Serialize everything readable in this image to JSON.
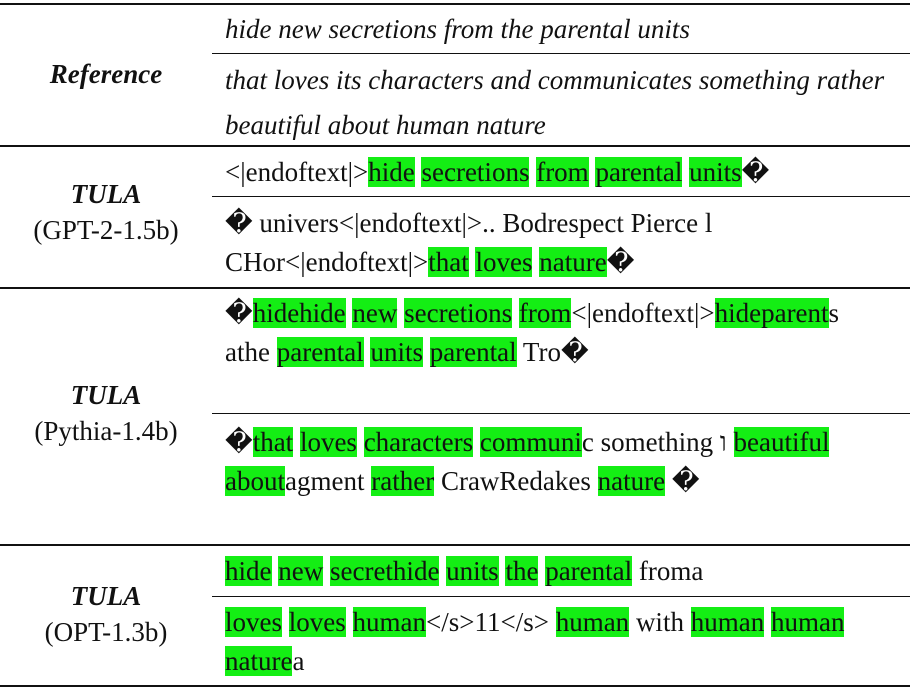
{
  "reference": {
    "label": "Reference",
    "texts": [
      "hide new secretions from the parental units",
      "that loves its characters and communicates something rather beautiful about human nature"
    ]
  },
  "groups": [
    {
      "label": "TULA",
      "sub": "(GPT-2-1.5b)",
      "outputs": [
        [
          {
            "t": "<|endoftext|>",
            "h": false
          },
          {
            "t": "hide",
            "h": true
          },
          {
            "t": " ",
            "h": false
          },
          {
            "t": "secretions",
            "h": true
          },
          {
            "t": " ",
            "h": false
          },
          {
            "t": "from",
            "h": true
          },
          {
            "t": " ",
            "h": false
          },
          {
            "t": "parental",
            "h": true
          },
          {
            "t": " ",
            "h": false
          },
          {
            "t": "units",
            "h": true
          },
          {
            "t": "�",
            "h": false
          }
        ],
        [
          {
            "t": "� univers<|endoftext|>.. Bodrespect Pierce l CHor<|endoftext|>",
            "h": false
          },
          {
            "t": "that",
            "h": true
          },
          {
            "t": " ",
            "h": false
          },
          {
            "t": "loves",
            "h": true
          },
          {
            "t": " ",
            "h": false
          },
          {
            "t": "nature",
            "h": true
          },
          {
            "t": "�",
            "h": false
          }
        ]
      ]
    },
    {
      "label": "TULA",
      "sub": "(Pythia-1.4b)",
      "outputs": [
        [
          {
            "t": "�",
            "h": false
          },
          {
            "t": "hidehide",
            "h": true
          },
          {
            "t": " ",
            "h": false
          },
          {
            "t": "new",
            "h": true
          },
          {
            "t": " ",
            "h": false
          },
          {
            "t": "secretions",
            "h": true
          },
          {
            "t": " ",
            "h": false
          },
          {
            "t": "from",
            "h": true
          },
          {
            "t": "<|endoftext|>",
            "h": false
          },
          {
            "t": "hideparent",
            "h": true
          },
          {
            "t": "s athe ",
            "h": false
          },
          {
            "t": "parental",
            "h": true
          },
          {
            "t": " ",
            "h": false
          },
          {
            "t": "units",
            "h": true
          },
          {
            "t": " ",
            "h": false
          },
          {
            "t": "parental",
            "h": true
          },
          {
            "t": " Tro�",
            "h": false
          }
        ],
        [
          {
            "t": "�",
            "h": false
          },
          {
            "t": "that",
            "h": true
          },
          {
            "t": " ",
            "h": false
          },
          {
            "t": "loves",
            "h": true
          },
          {
            "t": " ",
            "h": false
          },
          {
            "t": "characters",
            "h": true
          },
          {
            "t": " ",
            "h": false
          },
          {
            "t": "communi",
            "h": true
          },
          {
            "t": "c something ו ",
            "h": false
          },
          {
            "t": "beautiful",
            "h": true
          },
          {
            "t": " ",
            "h": false
          },
          {
            "t": "about",
            "h": true
          },
          {
            "t": "agment ",
            "h": false
          },
          {
            "t": "rather",
            "h": true
          },
          {
            "t": " CrawRedakes ",
            "h": false
          },
          {
            "t": "nature",
            "h": true
          },
          {
            "t": " �",
            "h": false
          }
        ]
      ]
    },
    {
      "label": "TULA",
      "sub": "(OPT-1.3b)",
      "outputs": [
        [
          {
            "t": "hide",
            "h": true
          },
          {
            "t": " ",
            "h": false
          },
          {
            "t": "new",
            "h": true
          },
          {
            "t": " ",
            "h": false
          },
          {
            "t": "secrethide",
            "h": true
          },
          {
            "t": " ",
            "h": false
          },
          {
            "t": "units",
            "h": true
          },
          {
            "t": " ",
            "h": false
          },
          {
            "t": "the",
            "h": true
          },
          {
            "t": " ",
            "h": false
          },
          {
            "t": "parental",
            "h": true
          },
          {
            "t": " froma",
            "h": false
          }
        ],
        [
          {
            "t": "loves",
            "h": true
          },
          {
            "t": " ",
            "h": false
          },
          {
            "t": "loves",
            "h": true
          },
          {
            "t": " ",
            "h": false
          },
          {
            "t": "human",
            "h": true
          },
          {
            "t": "</s>11</s> ",
            "h": false
          },
          {
            "t": "human",
            "h": true
          },
          {
            "t": "  with ",
            "h": false
          },
          {
            "t": "human",
            "h": true
          },
          {
            "t": " ",
            "h": false
          },
          {
            "t": "human",
            "h": true
          },
          {
            "t": " ",
            "h": false
          },
          {
            "t": "nature",
            "h": true
          },
          {
            "t": "a",
            "h": false
          }
        ]
      ]
    }
  ],
  "colors": {
    "highlight": "#14ee14",
    "text": "#111111",
    "rule": "#111111"
  }
}
